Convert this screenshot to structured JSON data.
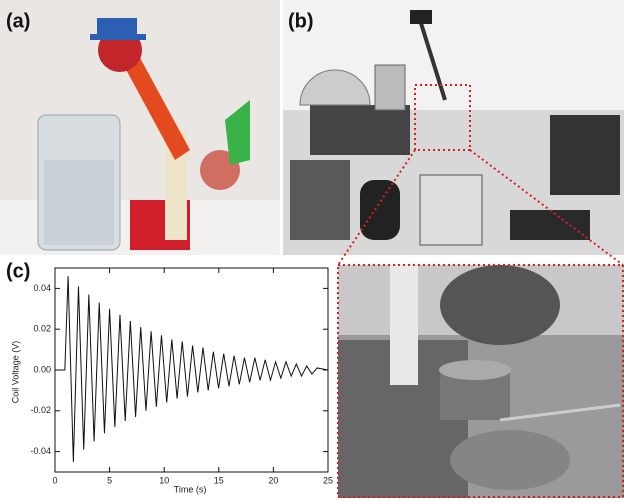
{
  "figure": {
    "panel_labels": [
      "(a)",
      "(b)",
      "(c)"
    ]
  },
  "chart_data": {
    "type": "line",
    "x_label": "Time (s)",
    "y_label": "Coil Voltage (V)",
    "x": [
      0,
      0.9,
      1.2,
      1.68,
      2.15,
      2.63,
      3.1,
      3.58,
      4.05,
      4.53,
      5.0,
      5.48,
      5.95,
      6.43,
      6.9,
      7.38,
      7.85,
      8.33,
      8.8,
      9.28,
      9.75,
      10.23,
      10.7,
      11.18,
      11.65,
      12.13,
      12.6,
      13.08,
      13.55,
      14.03,
      14.5,
      14.98,
      15.45,
      15.93,
      16.4,
      16.88,
      17.35,
      17.83,
      18.3,
      18.78,
      19.25,
      19.73,
      20.2,
      20.68,
      21.15,
      21.63,
      22.1,
      22.58,
      23.05,
      23.53,
      24,
      25
    ],
    "values": [
      0,
      0,
      0.046,
      -0.045,
      0.041,
      -0.039,
      0.037,
      -0.035,
      0.033,
      -0.031,
      0.03,
      -0.028,
      0.027,
      -0.025,
      0.024,
      -0.023,
      0.021,
      -0.02,
      0.019,
      -0.018,
      0.017,
      -0.016,
      0.015,
      -0.014,
      0.014,
      -0.013,
      0.012,
      -0.011,
      0.011,
      -0.01,
      0.009,
      -0.009,
      0.008,
      -0.008,
      0.007,
      -0.007,
      0.006,
      -0.006,
      0.006,
      -0.005,
      0.005,
      -0.005,
      0.004,
      -0.004,
      0.004,
      -0.003,
      0.003,
      -0.003,
      0.002,
      -0.002,
      0.001,
      0
    ],
    "color": "#111111",
    "xlim": [
      0,
      25
    ],
    "xticks": [
      0,
      5,
      10,
      15,
      20,
      25
    ],
    "ylim": [
      -0.05,
      0.05
    ],
    "yticks": [
      -0.04,
      -0.02,
      {
        "value": 0,
        "label": "0.00"
      },
      0.02,
      0.04
    ]
  }
}
